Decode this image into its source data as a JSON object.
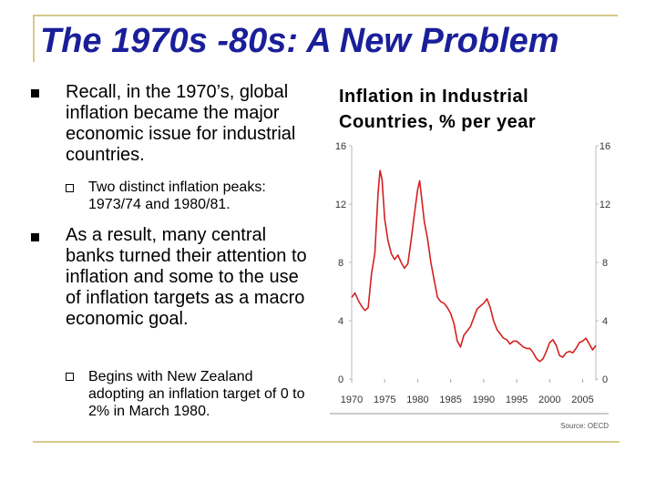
{
  "slide": {
    "title": "The 1970s -80s: A New Problem",
    "bullets": [
      {
        "text": "Recall, in the 1970’s, global inflation became the major economic issue for industrial countries.",
        "sub": "Two distinct inflation peaks: 1973/74 and 1980/81."
      },
      {
        "text": "As a result, many central banks turned their attention to inflation and some to the use of inflation targets as a macro economic goal.",
        "sub": "Begins with New Zealand adopting an inflation target of 0 to 2% in March 1980."
      }
    ],
    "chart_title": "Inflation in Industrial Countries, % per year"
  },
  "chart_data": {
    "type": "line",
    "title": "Inflation in Industrial Countries, % per year",
    "source": "Source: OECD",
    "ylim": [
      0,
      16
    ],
    "yticks": [
      "0",
      "4",
      "8",
      "12",
      "16"
    ],
    "xlim": [
      1970,
      2007
    ],
    "xticks": [
      "1970",
      "1975",
      "1980",
      "1985",
      "1990",
      "1995",
      "2000",
      "2005"
    ],
    "line_color": "#d42020",
    "series": [
      {
        "x": [
          1970,
          1970.5,
          1971,
          1971.5,
          1972,
          1972.5,
          1973,
          1973.5,
          1974,
          1974.3,
          1974.6,
          1975,
          1975.5,
          1976,
          1976.5,
          1977,
          1977.5,
          1978,
          1978.5,
          1979,
          1979.5,
          1980,
          1980.3,
          1980.6,
          1981,
          1981.5,
          1982,
          1982.5,
          1983,
          1983.5,
          1984,
          1984.5,
          1985,
          1985.5,
          1986,
          1986.5,
          1987,
          1987.5,
          1988,
          1988.5,
          1989,
          1989.5,
          1990,
          1990.5,
          1991,
          1991.5,
          1992,
          1992.5,
          1993,
          1993.5,
          1994,
          1994.5,
          1995,
          1995.5,
          1996,
          1996.5,
          1997,
          1997.5,
          1998,
          1998.5,
          1999,
          1999.5,
          2000,
          2000.5,
          2001,
          2001.5,
          2002,
          2002.5,
          2003,
          2003.5,
          2004,
          2004.5,
          2005,
          2005.5,
          2006,
          2006.5,
          2007
        ],
        "values": [
          5.6,
          5.9,
          5.4,
          5.0,
          4.7,
          4.9,
          7.2,
          8.6,
          12.8,
          14.3,
          13.7,
          11.0,
          9.5,
          8.6,
          8.2,
          8.5,
          8.0,
          7.6,
          7.9,
          9.5,
          11.3,
          13.0,
          13.6,
          12.4,
          10.8,
          9.6,
          8.0,
          6.8,
          5.6,
          5.3,
          5.2,
          4.9,
          4.5,
          3.8,
          2.6,
          2.2,
          3.0,
          3.3,
          3.6,
          4.2,
          4.8,
          5.0,
          5.2,
          5.5,
          4.9,
          4.0,
          3.4,
          3.1,
          2.8,
          2.7,
          2.4,
          2.6,
          2.6,
          2.4,
          2.2,
          2.1,
          2.1,
          1.8,
          1.4,
          1.2,
          1.4,
          1.9,
          2.5,
          2.7,
          2.3,
          1.6,
          1.5,
          1.8,
          1.9,
          1.8,
          2.1,
          2.5,
          2.6,
          2.8,
          2.4,
          2.0,
          2.3
        ]
      }
    ]
  }
}
